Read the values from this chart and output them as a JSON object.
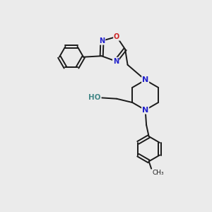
{
  "bg_color": "#ebebeb",
  "bond_color": "#1a1a1a",
  "n_color": "#2222cc",
  "o_color": "#cc2222",
  "ho_color": "#448888",
  "line_width": 1.4,
  "figsize": [
    3.0,
    3.0
  ],
  "dpi": 100,
  "xlim": [
    0,
    10
  ],
  "ylim": [
    0,
    10
  ]
}
